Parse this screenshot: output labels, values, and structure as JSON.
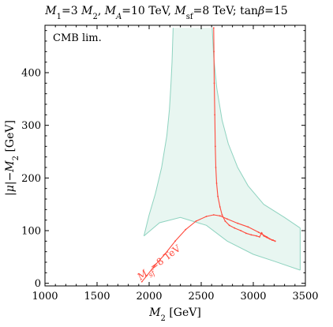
{
  "chart_data": {
    "type": "line",
    "title": "M1=3 M2, MA=10 TeV, Msf=8 TeV; tanβ=15",
    "xlabel": "M2 [GeV]",
    "ylabel": "|μ|−M2 [GeV]",
    "xlim": [
      1000,
      3500
    ],
    "ylim": [
      -5,
      490
    ],
    "x_ticks": [
      1000,
      1500,
      2000,
      2500,
      3000,
      3500
    ],
    "y_ticks": [
      0,
      100,
      200,
      300,
      400
    ],
    "annotations": [
      "CMB lim.",
      "Msf=8 TeV"
    ],
    "grid": false,
    "colors": {
      "band_fill": "#e8f6f1",
      "band_edge": "#8fd3c0",
      "curve": "#ff4a3d",
      "axis": "#000000"
    },
    "band": {
      "left_edge": [
        [
          2230,
          485
        ],
        [
          2220,
          420
        ],
        [
          2210,
          380
        ],
        [
          2195,
          330
        ],
        [
          2170,
          280
        ],
        [
          2120,
          220
        ],
        [
          2060,
          170
        ],
        [
          2000,
          130
        ],
        [
          1950,
          90
        ]
      ],
      "lower_edge": [
        [
          1950,
          90
        ],
        [
          2100,
          115
        ],
        [
          2300,
          125
        ],
        [
          2550,
          110
        ],
        [
          2750,
          80
        ],
        [
          3000,
          55
        ],
        [
          3200,
          42
        ],
        [
          3450,
          25
        ]
      ],
      "right_edge": [
        [
          3450,
          25
        ],
        [
          3450,
          105
        ]
      ],
      "upper_edge": [
        [
          3450,
          105
        ],
        [
          3300,
          125
        ],
        [
          3100,
          150
        ],
        [
          2950,
          185
        ],
        [
          2850,
          220
        ],
        [
          2760,
          265
        ],
        [
          2700,
          310
        ],
        [
          2650,
          370
        ],
        [
          2620,
          430
        ],
        [
          2605,
          485
        ]
      ]
    },
    "series": [
      {
        "points": [
          [
            2620,
            485
          ],
          [
            2622,
            440
          ],
          [
            2625,
            380
          ],
          [
            2630,
            320
          ],
          [
            2635,
            260
          ],
          [
            2640,
            220
          ],
          [
            2648,
            190
          ],
          [
            2660,
            165
          ],
          [
            2680,
            145
          ],
          [
            2700,
            130
          ],
          [
            2730,
            118
          ],
          [
            2770,
            110
          ],
          [
            2820,
            105
          ],
          [
            2880,
            100
          ],
          [
            2930,
            95
          ],
          [
            2980,
            92
          ],
          [
            3030,
            90
          ],
          [
            3060,
            88
          ],
          [
            3080,
            96
          ],
          [
            3100,
            90
          ],
          [
            3130,
            87
          ],
          [
            3160,
            84
          ],
          [
            3190,
            82
          ],
          [
            3210,
            80
          ]
        ]
      },
      {
        "points": [
          [
            1930,
            3
          ],
          [
            1980,
            15
          ],
          [
            2050,
            33
          ],
          [
            2150,
            55
          ],
          [
            2250,
            80
          ],
          [
            2350,
            102
          ],
          [
            2450,
            118
          ],
          [
            2550,
            127
          ],
          [
            2620,
            130
          ],
          [
            2680,
            128
          ],
          [
            2750,
            122
          ],
          [
            2850,
            114
          ],
          [
            2950,
            107
          ],
          [
            3050,
            97
          ],
          [
            3130,
            88
          ],
          [
            3180,
            82
          ],
          [
            3210,
            80
          ]
        ]
      }
    ]
  }
}
